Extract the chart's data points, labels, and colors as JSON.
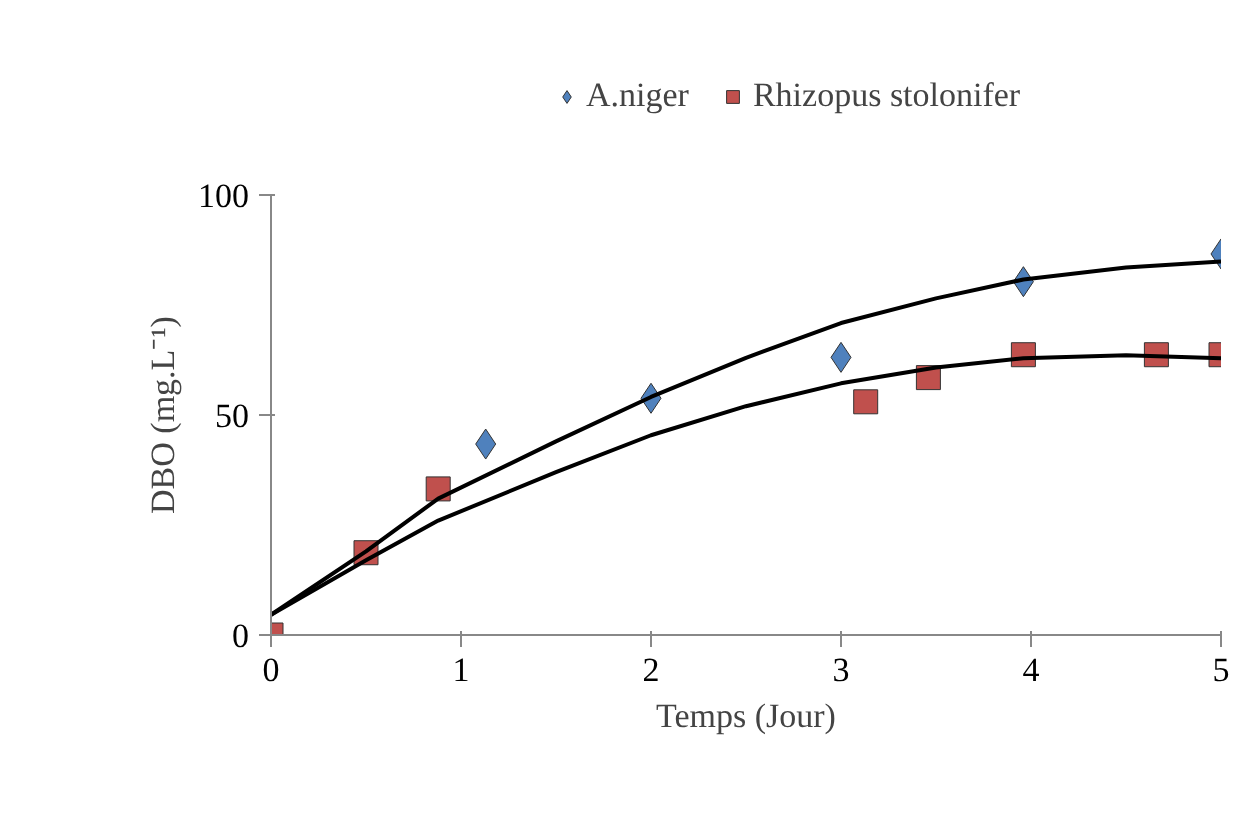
{
  "chart_data": {
    "type": "scatter",
    "xlabel": "Temps (Jour)",
    "ylabel": "DBO (mg.L⁻¹)",
    "xlim": [
      0,
      5
    ],
    "ylim": [
      0,
      100
    ],
    "xticks": [
      0,
      1,
      2,
      3,
      4,
      5
    ],
    "yticks": [
      0,
      50,
      100
    ],
    "grid": false,
    "legend": "top",
    "series": [
      {
        "name": "A.niger",
        "color": "#4f81bd",
        "marker": "diamond",
        "x": [
          1.13,
          2.0,
          3.0,
          3.96,
          5.0
        ],
        "values": [
          43.4,
          53.8,
          63.1,
          80.3,
          86.6
        ]
      },
      {
        "name": "Rhizopus stolonifer",
        "color": "#c0504d",
        "marker": "square",
        "x": [
          0,
          0.5,
          0.88,
          3.13,
          3.46,
          3.96,
          4.66,
          5.0
        ],
        "values": [
          0,
          18.7,
          33.2,
          53.0,
          58.5,
          63.7,
          63.7,
          63.7
        ]
      },
      {
        "type": "line",
        "color": "#000000",
        "marker": "none",
        "x": [
          0,
          0.5,
          0.88,
          1.5,
          2.0,
          2.5,
          3.0,
          3.5,
          3.96,
          4.5,
          5.0
        ],
        "values": [
          4.6,
          19,
          31,
          44,
          54.1,
          63,
          70.9,
          76.5,
          80.8,
          83.5,
          84.9
        ]
      },
      {
        "type": "line",
        "color": "#000000",
        "marker": "none",
        "x": [
          0,
          0.5,
          0.88,
          1.5,
          2.0,
          2.5,
          3.0,
          3.5,
          3.96,
          4.5,
          5.0
        ],
        "values": [
          4.6,
          17,
          26,
          37,
          45.4,
          52,
          57.2,
          60.8,
          62.9,
          63.6,
          62.9
        ]
      }
    ]
  }
}
